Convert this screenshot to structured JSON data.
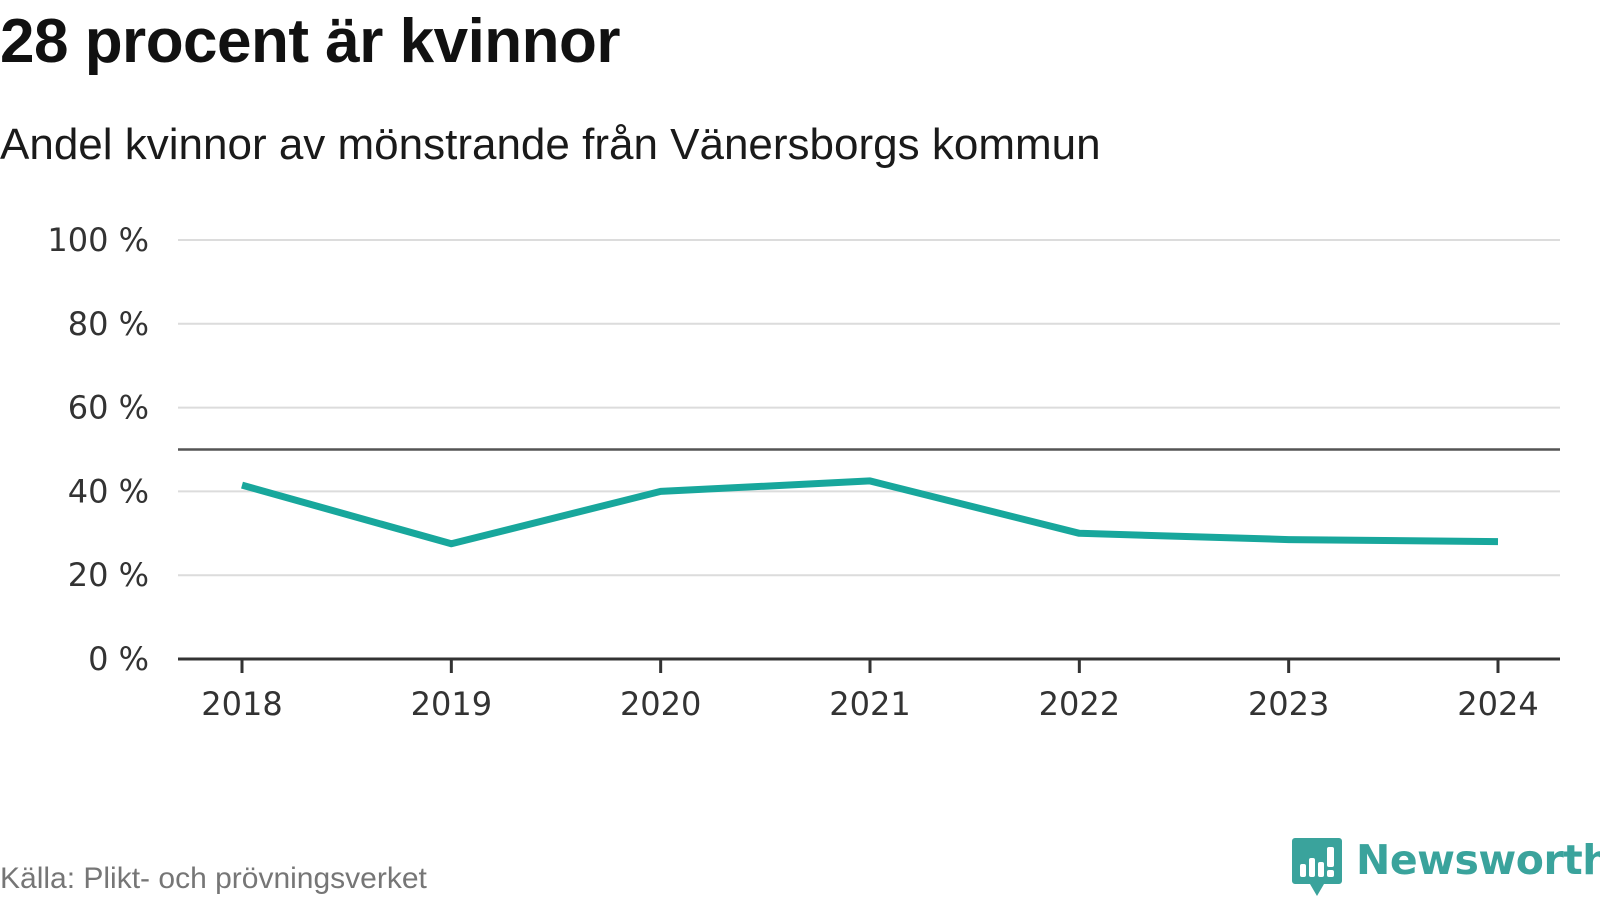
{
  "header": {
    "title": "28 procent är kvinnor",
    "subtitle": "Andel kvinnor av mönstrande från Vänersborgs kommun"
  },
  "footer": {
    "source": "Källa: Plikt- och prövningsverket",
    "brand": "Newsworthy"
  },
  "colors": {
    "line": "#18a79c",
    "grid": "#dcdcdc",
    "reference": "#555555",
    "axis": "#333333",
    "brand": "#3aa39c"
  },
  "chart_data": {
    "type": "line",
    "title": "28 procent är kvinnor",
    "subtitle": "Andel kvinnor av mönstrande från Vänersborgs kommun",
    "xlabel": "",
    "ylabel": "",
    "categories": [
      "2018",
      "2019",
      "2020",
      "2021",
      "2022",
      "2023",
      "2024"
    ],
    "series": [
      {
        "name": "Andel kvinnor",
        "values": [
          41.5,
          27.5,
          40,
          42.5,
          30,
          28.5,
          28
        ]
      }
    ],
    "ylim": [
      0,
      100
    ],
    "yticks": [
      0,
      20,
      40,
      60,
      80,
      100
    ],
    "ytick_labels": [
      "0 %",
      "20 %",
      "40 %",
      "60 %",
      "80 %",
      "100 %"
    ],
    "reference_line": 50,
    "grid": true,
    "legend": "none"
  }
}
